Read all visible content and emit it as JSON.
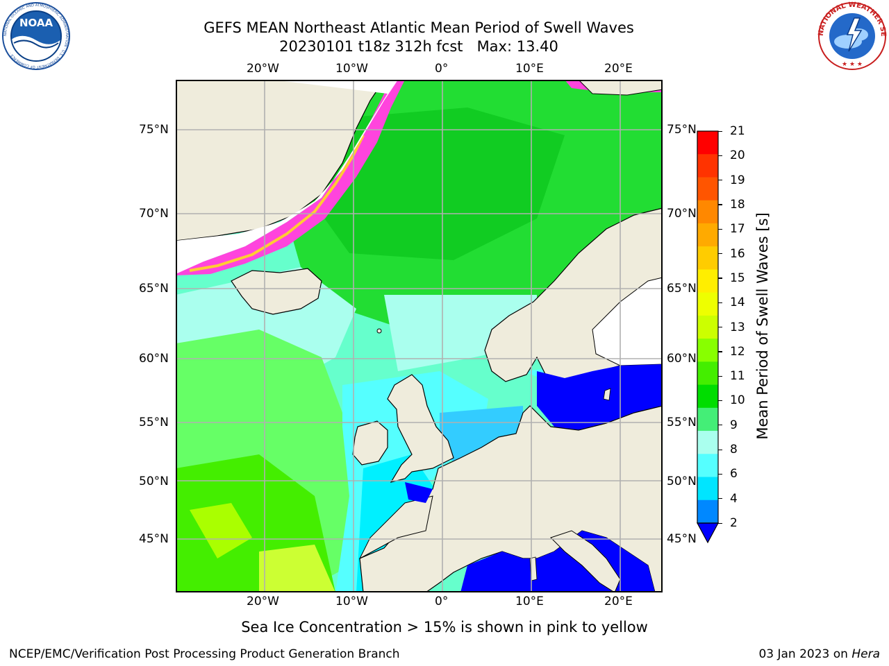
{
  "header": {
    "title_line1": "GEFS MEAN Northeast Atlantic Mean Period of Swell Waves",
    "title_line2": "20230101 t18z 312h fcst   Max: 13.40"
  },
  "logos": {
    "noaa_text": "NOAA",
    "noaa_ring_text": "NATIONAL OCEANIC AND ATMOSPHERIC ADMINISTRATION · U.S. DEPARTMENT OF COMMERCE ·",
    "nws_ring_text": "NATIONAL WEATHER SERVICE"
  },
  "map": {
    "lon_labels": [
      "20°W",
      "10°W",
      "0°",
      "10°E",
      "20°E"
    ],
    "lat_labels": [
      "75°N",
      "70°N",
      "65°N",
      "60°N",
      "55°N",
      "50°N",
      "45°N"
    ],
    "colors": {
      "land": "#efecdc",
      "ice": "#ff44dd",
      "grid": "#b0b0b0"
    },
    "caption": "Sea Ice Concentration > 15% is shown in pink to yellow"
  },
  "colorbar": {
    "label": "Mean Period of Swell Waves [s]",
    "ticks": [
      "21",
      "20",
      "19",
      "18",
      "17",
      "16",
      "15",
      "14",
      "13",
      "12",
      "11",
      "10",
      "9",
      "8",
      "6",
      "4",
      "2"
    ],
    "colors_top_to_bottom": [
      "#ff0000",
      "#ff3300",
      "#ff5500",
      "#ff8800",
      "#ffaa00",
      "#ffcc00",
      "#ffee00",
      "#eeff00",
      "#ccff00",
      "#88ff00",
      "#44ee00",
      "#00dd00",
      "#44ee77",
      "#aaffee",
      "#55ffff",
      "#00e5ff",
      "#0088ff"
    ],
    "extend_color": "#0000ff"
  },
  "footer": {
    "left": "NCEP/EMC/Verification Post Processing Product Generation Branch",
    "right_date": "03 Jan 2023 on",
    "right_host": "Hera"
  }
}
